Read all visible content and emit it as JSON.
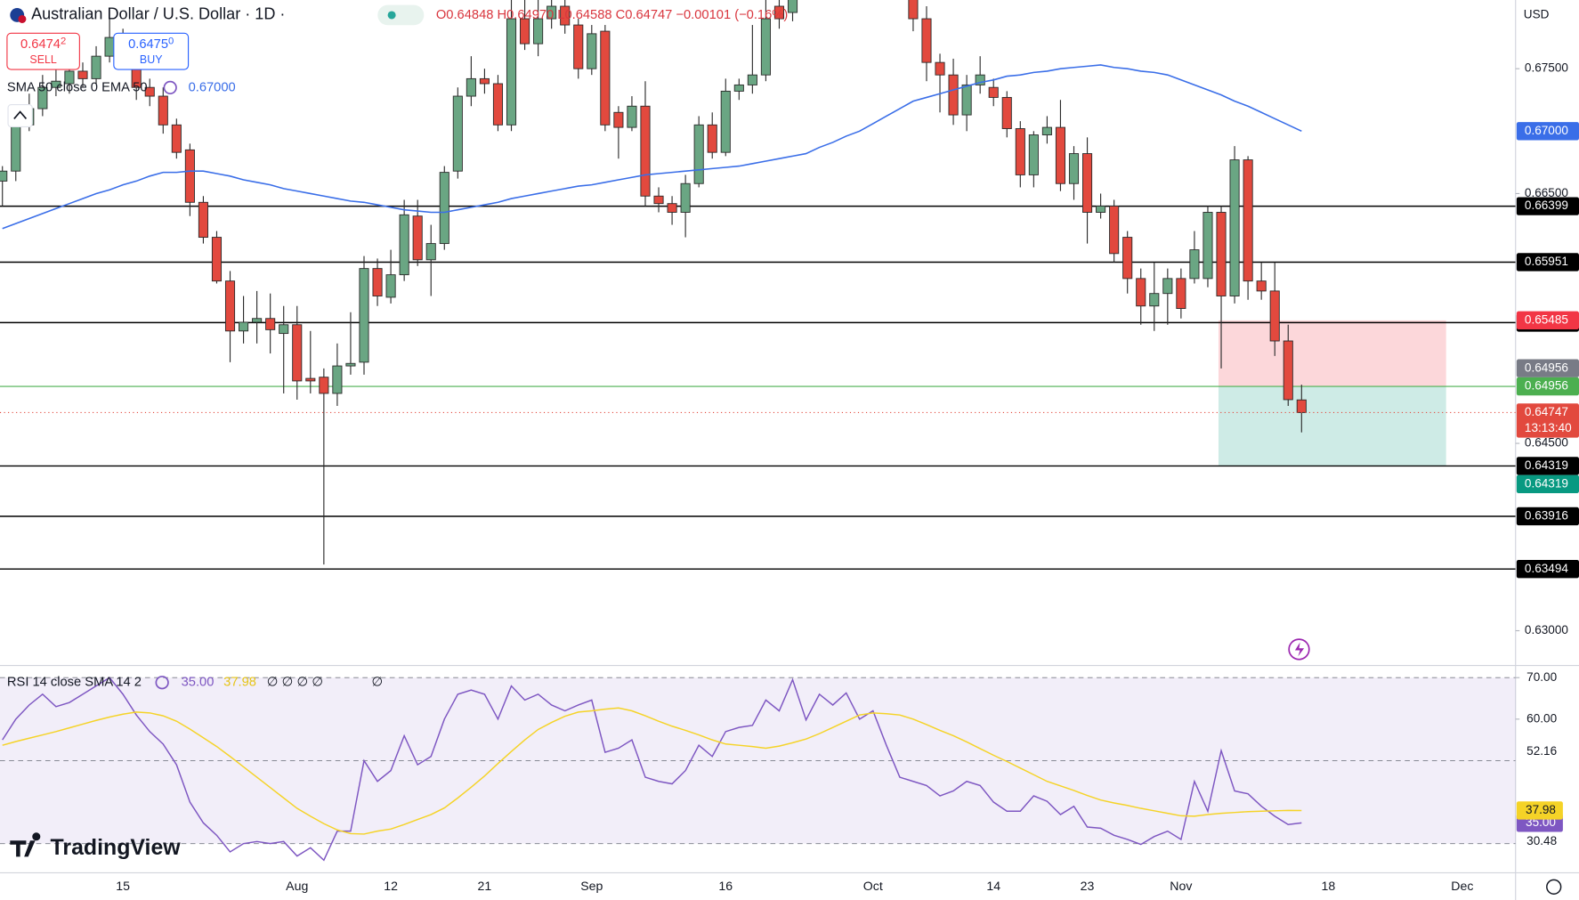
{
  "header": {
    "symbol": "Australian Dollar / U.S. Dollar · 1D ·",
    "ohlc": "O0.64848 H0.64970 L0.64588 C0.64747 −0.00101 (−0.16%)",
    "sell_price": "0.6474",
    "sell_pip": "2",
    "sell_label": "SELL",
    "buy_price": "0.6475",
    "buy_pip": "0",
    "buy_label": "BUY",
    "currency": "USD",
    "logo": "TradingView"
  },
  "chart_data": {
    "type": "candlestick",
    "categories": [
      null,
      null,
      null,
      null,
      null,
      null,
      null,
      null,
      null,
      "15",
      null,
      null,
      null,
      null,
      null,
      null,
      null,
      null,
      null,
      null,
      null,
      null,
      "Aug",
      null,
      null,
      null,
      null,
      null,
      null,
      "12",
      null,
      null,
      null,
      null,
      null,
      null,
      "21",
      null,
      null,
      null,
      null,
      null,
      null,
      null,
      "Sep",
      null,
      null,
      null,
      null,
      null,
      null,
      null,
      null,
      null,
      "16",
      null,
      null,
      null,
      null,
      null,
      null,
      null,
      null,
      null,
      null,
      "Oct",
      null,
      null,
      null,
      null,
      null,
      null,
      null,
      null,
      "14",
      null,
      null,
      null,
      null,
      null,
      null,
      "23",
      null,
      null,
      null,
      null,
      null,
      null,
      "Nov",
      null,
      null,
      null,
      null,
      null,
      null,
      null,
      null,
      null,
      null,
      "18",
      null,
      null,
      null,
      null,
      null,
      null,
      null,
      null,
      null,
      "Dec"
    ],
    "open": [
      0.666,
      0.6668,
      0.6705,
      0.6718,
      0.6735,
      0.6738,
      0.6748,
      0.6742,
      0.676,
      0.6775,
      0.6768,
      0.6735,
      0.6728,
      0.6705,
      0.6685,
      0.6643,
      0.6615,
      0.658,
      0.654,
      0.6547,
      0.655,
      0.6538,
      0.6545,
      0.6502,
      0.6503,
      0.649,
      0.6512,
      0.6515,
      0.659,
      0.6567,
      0.6585,
      0.6632,
      0.6597,
      0.661,
      0.6668,
      0.6728,
      0.6742,
      0.6738,
      0.6705,
      0.679,
      0.677,
      0.679,
      0.68,
      0.6785,
      0.675,
      0.678,
      0.6715,
      0.6703,
      0.672,
      0.6648,
      0.6642,
      0.6635,
      0.6658,
      0.6705,
      0.6683,
      0.6732,
      0.6737,
      0.6745,
      0.68,
      0.6795,
      0.682,
      0.687,
      0.689,
      0.688,
      0.6905,
      0.691,
      0.6895,
      0.688,
      0.686,
      0.679,
      0.6755,
      0.6745,
      0.6713,
      0.6737,
      0.6735,
      0.6727,
      0.6702,
      0.6665,
      0.6697,
      0.6703,
      0.6658,
      0.6682,
      0.6635,
      0.664,
      0.6615,
      0.6582,
      0.656,
      0.657,
      0.6582,
      0.6582,
      0.6582,
      0.6635,
      0.6568,
      0.6677,
      0.658,
      0.6572,
      0.6532,
      0.64848,
      null,
      null,
      null,
      null,
      null,
      null,
      null,
      null,
      null,
      null,
      null,
      null
    ],
    "high": [
      0.6672,
      0.6715,
      0.673,
      0.6745,
      0.6752,
      0.676,
      0.6755,
      0.6768,
      0.679,
      0.6782,
      0.6778,
      0.6742,
      0.6735,
      0.671,
      0.669,
      0.6648,
      0.662,
      0.6588,
      0.6568,
      0.6572,
      0.657,
      0.656,
      0.656,
      0.654,
      0.651,
      0.653,
      0.6555,
      0.66,
      0.6598,
      0.6605,
      0.6645,
      0.6645,
      0.6625,
      0.6672,
      0.6735,
      0.676,
      0.675,
      0.6745,
      0.681,
      0.6805,
      0.681,
      0.6815,
      0.6808,
      0.679,
      0.6785,
      0.6785,
      0.672,
      0.6728,
      0.674,
      0.6655,
      0.6648,
      0.6665,
      0.6712,
      0.6715,
      0.6742,
      0.6742,
      0.6785,
      0.681,
      0.6808,
      0.6818,
      0.688,
      0.6898,
      0.6895,
      0.6912,
      0.692,
      0.6915,
      0.69,
      0.6885,
      0.6865,
      0.68,
      0.6762,
      0.6758,
      0.6745,
      0.676,
      0.6742,
      0.6732,
      0.6708,
      0.67,
      0.6712,
      0.6725,
      0.6688,
      0.6695,
      0.665,
      0.6645,
      0.662,
      0.659,
      0.6595,
      0.659,
      0.659,
      0.662,
      0.664,
      0.664,
      0.6688,
      0.668,
      0.6595,
      0.6595,
      0.6545,
      0.6497,
      null,
      null,
      null,
      null,
      null,
      null,
      null,
      null,
      null,
      null,
      null,
      null
    ],
    "low": [
      0.664,
      0.666,
      0.67,
      0.6712,
      0.6728,
      0.673,
      0.6735,
      0.6738,
      0.6755,
      0.676,
      0.6725,
      0.672,
      0.6698,
      0.6678,
      0.6632,
      0.661,
      0.6578,
      0.6515,
      0.653,
      0.653,
      0.6522,
      0.649,
      0.6485,
      0.649,
      0.6353,
      0.648,
      0.6505,
      0.6505,
      0.656,
      0.6562,
      0.658,
      0.6592,
      0.6568,
      0.6605,
      0.6662,
      0.672,
      0.673,
      0.67,
      0.67,
      0.6765,
      0.676,
      0.6782,
      0.6778,
      0.6742,
      0.6745,
      0.67,
      0.6678,
      0.67,
      0.664,
      0.6635,
      0.6625,
      0.6615,
      0.6655,
      0.6678,
      0.668,
      0.6725,
      0.673,
      0.674,
      0.6782,
      0.6788,
      0.6815,
      0.6862,
      0.6872,
      0.6875,
      0.6898,
      0.689,
      0.6872,
      0.6845,
      0.678,
      0.674,
      0.6715,
      0.6705,
      0.67,
      0.673,
      0.672,
      0.6695,
      0.6655,
      0.6655,
      0.669,
      0.6652,
      0.6645,
      0.661,
      0.663,
      0.6595,
      0.657,
      0.6545,
      0.654,
      0.6545,
      0.655,
      0.6578,
      0.6575,
      0.651,
      0.6562,
      0.6565,
      0.6565,
      0.652,
      0.648,
      0.64588,
      null,
      null,
      null,
      null,
      null,
      null,
      null,
      null,
      null,
      null,
      null,
      null
    ],
    "close": [
      0.6668,
      0.6705,
      0.6718,
      0.6735,
      0.674,
      0.6748,
      0.6742,
      0.676,
      0.6775,
      0.6768,
      0.6735,
      0.6728,
      0.6705,
      0.6683,
      0.6643,
      0.6615,
      0.658,
      0.654,
      0.6547,
      0.655,
      0.6541,
      0.6545,
      0.65,
      0.65,
      0.649,
      0.6512,
      0.6514,
      0.659,
      0.6568,
      0.6585,
      0.6633,
      0.6597,
      0.661,
      0.6667,
      0.6728,
      0.6742,
      0.6738,
      0.6705,
      0.679,
      0.677,
      0.679,
      0.68,
      0.6785,
      0.675,
      0.6778,
      0.6705,
      0.6703,
      0.672,
      0.6648,
      0.6642,
      0.6635,
      0.6658,
      0.6705,
      0.6683,
      0.6732,
      0.6737,
      0.6745,
      0.679,
      0.679,
      0.681,
      0.687,
      0.689,
      0.688,
      0.6905,
      0.691,
      0.6895,
      0.688,
      0.686,
      0.679,
      0.6755,
      0.6745,
      0.6713,
      0.6737,
      0.6745,
      0.6727,
      0.6702,
      0.6665,
      0.6697,
      0.6703,
      0.6658,
      0.6682,
      0.6635,
      0.664,
      0.6602,
      0.6582,
      0.656,
      0.657,
      0.6582,
      0.6558,
      0.6605,
      0.6635,
      0.6568,
      0.6677,
      0.658,
      0.6572,
      0.6532,
      0.6485,
      0.64747,
      null,
      null,
      null,
      null,
      null,
      null,
      null,
      null,
      null,
      null,
      null,
      null
    ],
    "up_color": "#6aa683",
    "down_color": "#e2493e",
    "outline_color": "#2b2b2b",
    "ylim": [
      0.6273,
      0.6805
    ],
    "yticks": [
      {
        "value": 0.675,
        "label": "0.67500"
      },
      {
        "value": 0.665,
        "label": "0.66500"
      },
      {
        "value": 0.645,
        "label": "0.64500"
      },
      {
        "value": 0.63,
        "label": "0.63000"
      }
    ],
    "grid": false,
    "series": [
      {
        "name": "SMA 50 close 0 EMA 50",
        "color": "#3a6ee8",
        "last_value_label": "0.67000",
        "values": [
          0.6622,
          0.6626,
          0.663,
          0.6634,
          0.6638,
          0.6642,
          0.6646,
          0.665,
          0.6653,
          0.6657,
          0.666,
          0.6664,
          0.6667,
          0.6667,
          0.6668,
          0.6668,
          0.6666,
          0.6664,
          0.6661,
          0.6659,
          0.6657,
          0.6654,
          0.6652,
          0.665,
          0.6648,
          0.6646,
          0.6644,
          0.6643,
          0.6641,
          0.6639,
          0.6637,
          0.6636,
          0.6635,
          0.6635,
          0.6637,
          0.6639,
          0.6641,
          0.6643,
          0.6646,
          0.6648,
          0.665,
          0.6652,
          0.6654,
          0.6656,
          0.6657,
          0.6659,
          0.6661,
          0.6663,
          0.6665,
          0.6666,
          0.6667,
          0.6668,
          0.6669,
          0.667,
          0.6671,
          0.6672,
          0.6674,
          0.6676,
          0.6678,
          0.668,
          0.6682,
          0.6687,
          0.6691,
          0.6696,
          0.67,
          0.6706,
          0.6712,
          0.6718,
          0.6724,
          0.6727,
          0.673,
          0.6733,
          0.6736,
          0.6739,
          0.6741,
          0.6744,
          0.6745,
          0.6747,
          0.6748,
          0.675,
          0.6751,
          0.6752,
          0.6753,
          0.6751,
          0.675,
          0.6748,
          0.6747,
          0.6745,
          0.6741,
          0.6737,
          0.6733,
          0.6729,
          0.6724,
          0.672,
          0.6715,
          0.671,
          0.6705,
          0.67,
          null,
          null,
          null,
          null,
          null,
          null,
          null,
          null,
          null,
          null,
          null,
          null
        ]
      }
    ],
    "levels": {
      "values": [
        0.66399,
        0.65951,
        0.65467,
        0.64319,
        0.63916,
        0.63494
      ],
      "color": "#000000"
    },
    "position": {
      "stop": 0.65485,
      "entry": 0.64956,
      "target": 0.64319,
      "stop_color": "#f23645",
      "entry_color": "#4caf50",
      "target_color": "#089981"
    },
    "last_price_countdown": "13:13:40",
    "rsi": {
      "type": "line",
      "indicator_label": "RSI 14 close SMA 14 2",
      "extra_labels": [
        "∅ ∅ ∅ ∅",
        "∅"
      ],
      "ylim": [
        23.2,
        72.7
      ],
      "yticks": [
        {
          "value": 70,
          "label": "70.00"
        },
        {
          "value": 60,
          "label": "60.00"
        }
      ],
      "scale_labels": [
        {
          "value": 52.16,
          "label": "52.16"
        },
        {
          "value": 30.48,
          "label": "30.48"
        }
      ],
      "bands": [
        70,
        50,
        30
      ],
      "band_color": "#7e57c2",
      "series": [
        {
          "color": "#7e57c2",
          "last_value_label": "35.00",
          "values": [
            55,
            60,
            63.4,
            66,
            63,
            64,
            66,
            68,
            70,
            66,
            61,
            57,
            54,
            49,
            40,
            35,
            32,
            28,
            30,
            30.5,
            30,
            30.5,
            27,
            29,
            26,
            33,
            33,
            50,
            45,
            47.6,
            56,
            49,
            51,
            60,
            66,
            67,
            66,
            60,
            68,
            64.6,
            66,
            63.4,
            62,
            63.4,
            64.6,
            52,
            53,
            55,
            46,
            45,
            44.4,
            47.6,
            53.7,
            51,
            57,
            58,
            58.5,
            64.6,
            62,
            69.5,
            59.8,
            66,
            63.4,
            66.3,
            60,
            62,
            53.7,
            46,
            45,
            44,
            41.5,
            42.7,
            45,
            44,
            40,
            37.8,
            37.8,
            41.5,
            40.2,
            37,
            39,
            34,
            33.7,
            32,
            31,
            29.8,
            31.7,
            33,
            31,
            45,
            37.8,
            52.4,
            42.7,
            42,
            39,
            36.6,
            34.6,
            35,
            null,
            null,
            null,
            null,
            null,
            null,
            null,
            null,
            null,
            null,
            null,
            null
          ]
        },
        {
          "color": "#f5d327",
          "last_value_label": "37.98",
          "values": [
            53.7,
            54.6,
            55.4,
            56.2,
            57,
            57.9,
            58.8,
            59.7,
            60.5,
            61.2,
            61.7,
            61.5,
            60.8,
            59.5,
            57.6,
            55.5,
            53.4,
            51,
            48.5,
            46,
            43.5,
            41,
            38.5,
            36.6,
            34.8,
            33.3,
            32.4,
            32.3,
            33,
            33.5,
            34.6,
            35.8,
            37,
            38.6,
            41,
            43.6,
            46.3,
            49.3,
            52.2,
            55,
            57.5,
            59.2,
            60.7,
            61.7,
            62,
            62.4,
            62.7,
            62,
            60.8,
            59.5,
            58.3,
            57.3,
            56.2,
            55,
            54,
            53.7,
            53.4,
            53,
            53.5,
            54.3,
            55.2,
            56.5,
            58,
            59.5,
            61,
            61.5,
            61.3,
            61,
            60,
            58.7,
            57.3,
            56,
            54.5,
            52.9,
            51.3,
            49.8,
            48.2,
            46.6,
            45,
            43.9,
            42.8,
            41.6,
            40.5,
            39.8,
            39.2,
            38.5,
            37.9,
            37.3,
            36.7,
            36.6,
            37,
            37.3,
            37.5,
            37.7,
            37.8,
            37.9,
            38,
            37.98,
            null,
            null,
            null,
            null,
            null,
            null,
            null,
            null,
            null,
            null,
            null,
            null
          ]
        }
      ]
    }
  }
}
